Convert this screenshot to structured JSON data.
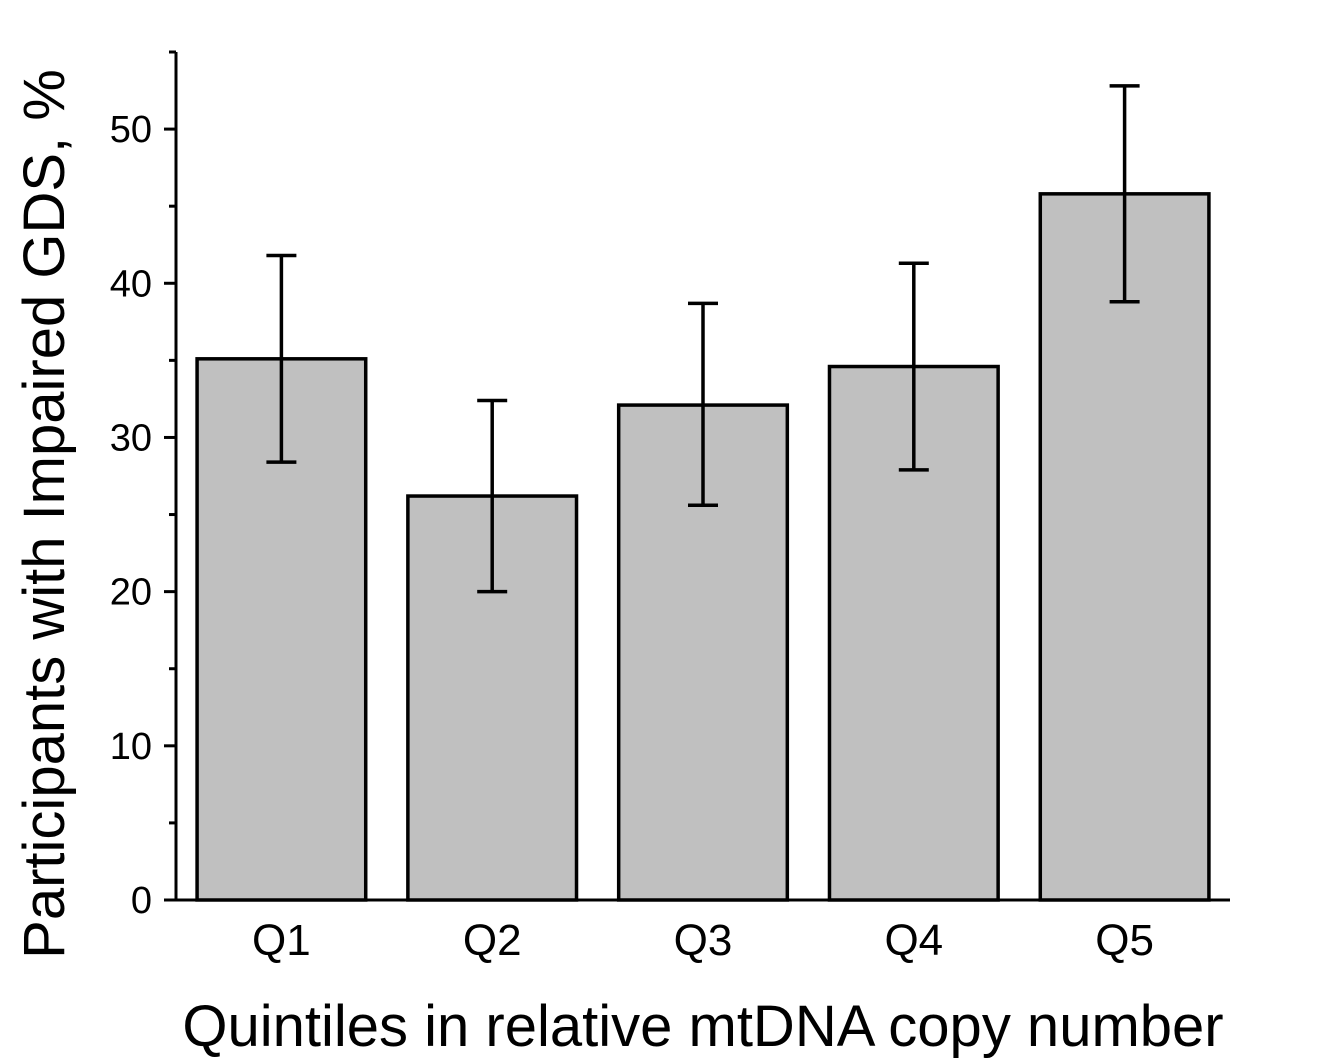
{
  "chart_data": {
    "type": "bar",
    "title": "",
    "xlabel": "Quintiles in relative mtDNA copy number",
    "ylabel": "Participants with Impaired GDS, %",
    "categories": [
      "Q1",
      "Q2",
      "Q3",
      "Q4",
      "Q5"
    ],
    "values": [
      35.1,
      26.2,
      32.1,
      34.6,
      45.8
    ],
    "error_low": [
      28.4,
      20.0,
      25.6,
      27.9,
      38.8
    ],
    "error_high": [
      41.8,
      32.4,
      38.7,
      41.3,
      52.8
    ],
    "ylim": [
      0,
      55
    ],
    "yticks": [
      "0",
      "10",
      "20",
      "30",
      "40",
      "50"
    ],
    "grid": false,
    "legend": "none",
    "colors": {
      "bar_fill": "#c0c0c0",
      "bar_stroke": "#000000",
      "axis": "#000000"
    }
  }
}
